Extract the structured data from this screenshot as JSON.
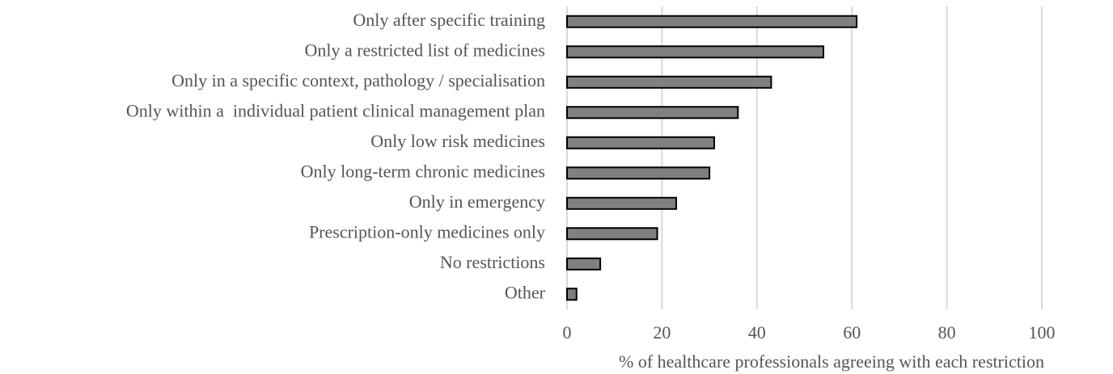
{
  "chart_data": {
    "type": "barh",
    "categories": [
      "Only after specific training",
      "Only a restricted list of medicines",
      "Only in a specific context, pathology / specialisation",
      "Only within a  individual patient clinical management plan",
      "Only low risk medicines",
      "Only long-term chronic medicines",
      "Only in emergency",
      "Prescription-only medicines only",
      "No restrictions",
      "Other"
    ],
    "values": [
      61,
      54,
      43,
      36,
      31,
      30,
      23,
      19,
      7,
      2
    ],
    "color": "#808080",
    "xlabel": "% of healthcare professionals agreeing with each restriction",
    "xlim": [
      0,
      100
    ],
    "xticks": [
      0,
      20,
      40,
      60,
      80,
      100
    ],
    "grid": true
  }
}
